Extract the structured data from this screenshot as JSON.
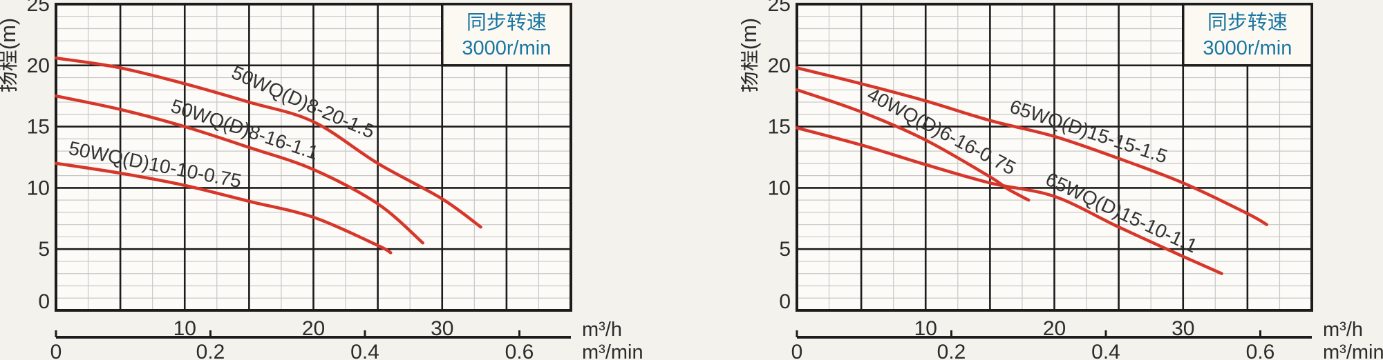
{
  "colors": {
    "page_bg": "#f4f2ec",
    "plot_bg": "#fcfbf7",
    "legend_bg": "#fbf9f2",
    "grid_minor": "#c7c7c7",
    "grid_major": "#1c1c1c",
    "curve": "#d7372b",
    "legend_text": "#1a76a2",
    "text": "#2b2b2b",
    "label_text": "#333333"
  },
  "chart_data": [
    {
      "type": "line",
      "title": "",
      "ylabel": "扬程(m)",
      "x_unit_top": "m³/h",
      "x_unit_bottom": "m³/min",
      "xlim": [
        0,
        40
      ],
      "ylim": [
        0,
        25
      ],
      "x_major_step": 5,
      "x_minor_step": 2.5,
      "y_major_step": 5,
      "y_minor_step": 1,
      "x_tick_labels": [
        [
          10,
          "10"
        ],
        [
          20,
          "20"
        ],
        [
          30,
          "30"
        ]
      ],
      "y_tick_labels": [
        [
          0,
          "0"
        ],
        [
          5,
          "5"
        ],
        [
          10,
          "10"
        ],
        [
          15,
          "15"
        ],
        [
          20,
          "20"
        ],
        [
          25,
          "25"
        ]
      ],
      "bottom_axis_ticks": [
        [
          0,
          "0"
        ],
        [
          0.2,
          "0.2"
        ],
        [
          0.4,
          "0.4"
        ],
        [
          0.6,
          "0.6"
        ]
      ],
      "bottom_axis_scale": 60,
      "grid": true,
      "legend_position": "top-right",
      "legend": {
        "lines": [
          "同步转速",
          "3000r/min"
        ],
        "box_data_rect": [
          30,
          20,
          40,
          25
        ]
      },
      "series": [
        {
          "name": "50WQ(D)8-20-1.5",
          "label_x": 19,
          "label_dy": 0.8,
          "points": [
            [
              0,
              20.6
            ],
            [
              5,
              19.8
            ],
            [
              10,
              18.5
            ],
            [
              15,
              17.0
            ],
            [
              20,
              15.4
            ],
            [
              25,
              12.0
            ],
            [
              30,
              9.1
            ],
            [
              33,
              6.8
            ]
          ]
        },
        {
          "name": "50WQ(D)8-16-1.1",
          "label_x": 14.5,
          "label_dy": 0.8,
          "points": [
            [
              0,
              17.5
            ],
            [
              5,
              16.4
            ],
            [
              10,
              15.0
            ],
            [
              15,
              13.3
            ],
            [
              20,
              11.5
            ],
            [
              25,
              8.7
            ],
            [
              28.5,
              5.5
            ]
          ]
        },
        {
          "name": "50WQ(D)10-10-0.75",
          "label_x": 7.6,
          "label_dy": 0.7,
          "points": [
            [
              0,
              12.0
            ],
            [
              5,
              11.2
            ],
            [
              10,
              10.2
            ],
            [
              15,
              8.9
            ],
            [
              20,
              7.6
            ],
            [
              25,
              5.3
            ],
            [
              26,
              4.7
            ]
          ]
        }
      ]
    },
    {
      "type": "line",
      "title": "",
      "ylabel": "扬程(m)",
      "x_unit_top": "m³/h",
      "x_unit_bottom": "m³/min",
      "xlim": [
        0,
        40
      ],
      "ylim": [
        0,
        25
      ],
      "x_major_step": 5,
      "x_minor_step": 2.5,
      "y_major_step": 5,
      "y_minor_step": 1,
      "x_tick_labels": [
        [
          10,
          "10"
        ],
        [
          20,
          "20"
        ],
        [
          30,
          "30"
        ]
      ],
      "y_tick_labels": [
        [
          0,
          "0"
        ],
        [
          5,
          "5"
        ],
        [
          10,
          "10"
        ],
        [
          15,
          "15"
        ],
        [
          20,
          "20"
        ],
        [
          25,
          "25"
        ]
      ],
      "bottom_axis_ticks": [
        [
          0,
          "0"
        ],
        [
          0.2,
          "0.2"
        ],
        [
          0.4,
          "0.4"
        ],
        [
          0.6,
          "0.6"
        ]
      ],
      "bottom_axis_scale": 60,
      "grid": true,
      "legend_position": "top-right",
      "legend": {
        "lines": [
          "同步转速",
          "3000r/min"
        ],
        "box_data_rect": [
          30,
          20,
          40,
          25
        ]
      },
      "series": [
        {
          "name": "65WQ(D)15-15-1.5",
          "label_x": 22.5,
          "label_dy": 0.8,
          "points": [
            [
              0,
              19.8
            ],
            [
              5,
              18.5
            ],
            [
              10,
              17.1
            ],
            [
              15,
              15.5
            ],
            [
              20,
              14.2
            ],
            [
              25,
              12.4
            ],
            [
              30,
              10.4
            ],
            [
              35,
              7.9
            ],
            [
              36.5,
              7.0
            ]
          ]
        },
        {
          "name": "40WQ(D)6-16-0.75",
          "label_x": 11,
          "label_dy": 0.85,
          "points": [
            [
              0,
              18.0
            ],
            [
              5,
              16.2
            ],
            [
              10,
              13.9
            ],
            [
              15,
              10.9
            ],
            [
              16.4,
              9.9
            ],
            [
              18,
              9.0
            ]
          ]
        },
        {
          "name": "65WQ(D)15-10-1.1",
          "label_x": 25,
          "label_dy": 0.7,
          "points": [
            [
              0,
              14.9
            ],
            [
              5,
              13.5
            ],
            [
              10,
              11.9
            ],
            [
              15,
              10.4
            ],
            [
              20,
              9.3
            ],
            [
              25,
              6.8
            ],
            [
              30,
              4.4
            ],
            [
              33,
              3.0
            ]
          ]
        }
      ]
    }
  ]
}
